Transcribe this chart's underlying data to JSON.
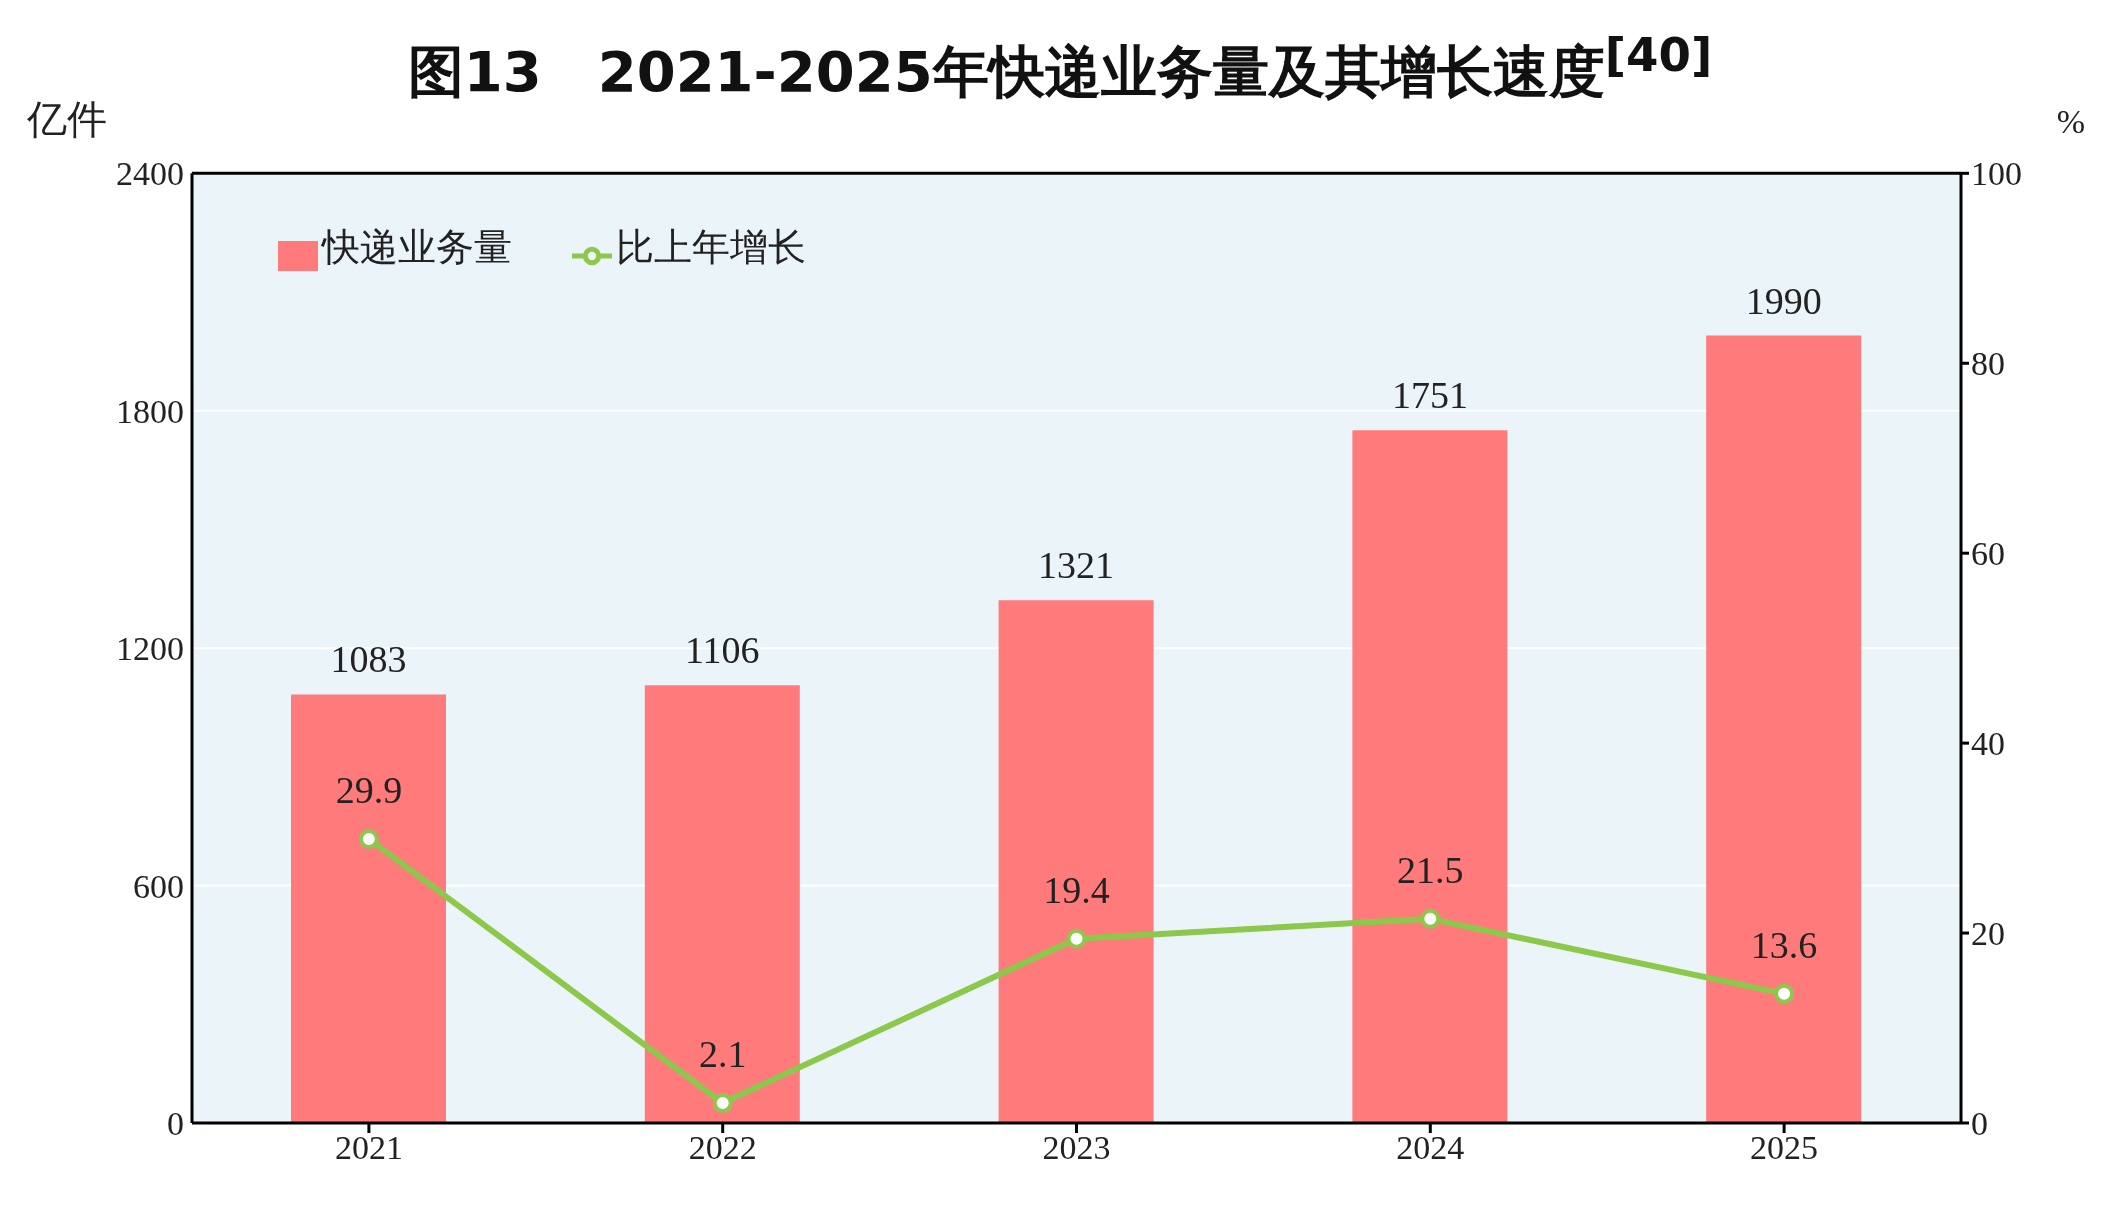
{
  "chart_data": {
    "type": "bar",
    "title": "图13　2021-2025年快递业务量及其增长速度$^{[40]}$",
    "ylabel": "亿件",
    "y2label": "%",
    "categories": [
      "2021",
      "2022",
      "2023",
      "2024",
      "2025"
    ],
    "series": [
      {
        "name": "快递业务量",
        "color": "#ff7b7b",
        "values": [
          1083,
          1106,
          1321,
          1751,
          1990
        ]
      },
      {
        "name": "比上年增长",
        "type": "line",
        "axis": "y2",
        "color": "#8cc84b",
        "marker": "circle",
        "values": [
          29.9,
          2.1,
          19.4,
          21.5,
          13.6
        ]
      }
    ],
    "ylim": [
      0,
      2400
    ],
    "yticks": [
      0,
      600,
      1200,
      1800,
      2400
    ],
    "y2lim": [
      0,
      100
    ],
    "y2ticks": [
      0,
      20,
      40,
      60,
      80,
      100
    ],
    "grid": "y",
    "legend": "top left",
    "data_labels": true
  }
}
